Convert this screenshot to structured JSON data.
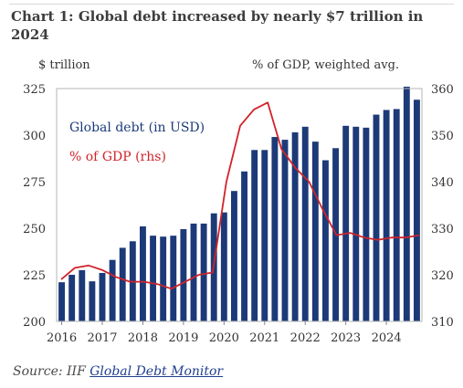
{
  "title": "Chart 1: Global debt increased by nearly $7 trillion in 2024",
  "left_unit": "$ trillion",
  "right_unit": "% of GDP, weighted avg.",
  "source": {
    "prefix": "Source: IIF ",
    "link": "Global Debt Monitor"
  },
  "colors": {
    "bars": "#1c3a78",
    "line": "#d0232a",
    "label_bars": "#1c3a78",
    "label_line": "#d0232a"
  },
  "chart_data": {
    "type": "bar",
    "grid": false,
    "legend_placement": "top-left",
    "y_left": {
      "range": [
        200,
        325
      ],
      "ticks": [
        "200",
        "225",
        "250",
        "275",
        "300",
        "325"
      ]
    },
    "y_right": {
      "range": [
        310,
        360
      ],
      "ticks": [
        "310",
        "320",
        "330",
        "340",
        "350",
        "360"
      ]
    },
    "x_ticks": [
      "2016",
      "2017",
      "2018",
      "2019",
      "2020",
      "2021",
      "2022",
      "2023",
      "2024"
    ],
    "series": [
      {
        "name": "Global debt (in USD)",
        "axis": "left",
        "style": "bar",
        "values": [
          221,
          225,
          227.5,
          221.5,
          226,
          233,
          239.5,
          243,
          251,
          246,
          245.5,
          246,
          249.5,
          252.5,
          252.5,
          258,
          258.5,
          270,
          280.5,
          292,
          292,
          299,
          297.5,
          301.5,
          304.5,
          296.5,
          286.5,
          293,
          305,
          304.5,
          304,
          311,
          313.5,
          314,
          326,
          319
        ]
      },
      {
        "name": "% of GDP (rhs)",
        "axis": "right",
        "style": "line",
        "values": [
          319,
          321.5,
          322,
          321,
          319.5,
          318.5,
          318.5,
          318,
          317,
          318.5,
          320,
          320.5,
          340,
          352,
          355.5,
          357,
          347,
          343,
          340,
          334,
          328.5,
          329,
          328,
          327.5,
          328,
          328,
          328.5
        ]
      }
    ]
  }
}
